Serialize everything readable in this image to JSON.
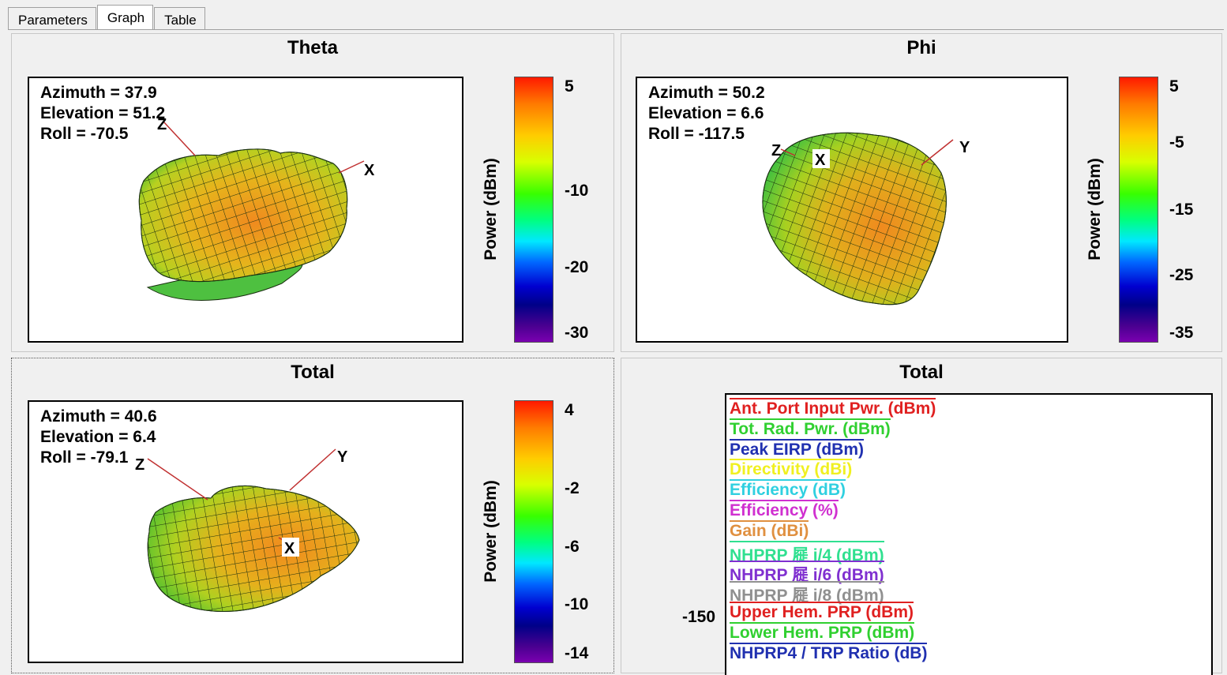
{
  "tabs": [
    {
      "label": "Parameters"
    },
    {
      "label": "Graph"
    },
    {
      "label": "Table"
    }
  ],
  "panels": {
    "theta": {
      "title": "Theta",
      "azimuth": "Azimuth = 37.9",
      "elevation": "Elevation = 51.2",
      "roll": "Roll = -70.5",
      "axes": {
        "a": "Z",
        "b": "X"
      },
      "colorbar": {
        "label": "Power (dBm)",
        "ticks": [
          "5",
          "-10",
          "-20",
          "-30"
        ]
      }
    },
    "phi": {
      "title": "Phi",
      "azimuth": "Azimuth = 50.2",
      "elevation": "Elevation = 6.6",
      "roll": "Roll = -117.5",
      "axes": {
        "a": "Z",
        "b": "X",
        "c": "Y"
      },
      "colorbar": {
        "label": "Power (dBm)",
        "ticks": [
          "5",
          "-5",
          "-15",
          "-25",
          "-35"
        ]
      }
    },
    "total3d": {
      "title": "Total",
      "azimuth": "Azimuth = 40.6",
      "elevation": "Elevation = 6.4",
      "roll": "Roll = -79.1",
      "axes": {
        "a": "Z",
        "b": "Y",
        "c": "X"
      },
      "colorbar": {
        "label": "Power (dBm)",
        "ticks": [
          "4",
          "-2",
          "-6",
          "-10",
          "-14"
        ]
      }
    },
    "total2d": {
      "title": "Total",
      "y_value": "-150",
      "legend": [
        {
          "label": "Ant. Port Input Pwr. (dBm)",
          "color": "#e02020"
        },
        {
          "label": "Tot. Rad. Pwr. (dBm)",
          "color": "#30d030"
        },
        {
          "label": "Peak EIRP (dBm)",
          "color": "#2030b0"
        },
        {
          "label": "Directivity (dBi)",
          "color": "#f0f020"
        },
        {
          "label": "Efficiency (dB)",
          "color": "#30d0e0"
        },
        {
          "label": "Efficiency (%)",
          "color": "#d030d0"
        },
        {
          "label": "Gain (dBi)",
          "color": "#e09040"
        },
        {
          "label": "NHPRP 屣 i/4 (dBm)",
          "color": "#30e090"
        },
        {
          "label": "NHPRP 屣 i/6 (dBm)",
          "color": "#8030d0"
        },
        {
          "label": "NHPRP 屣 i/8 (dBm)",
          "color": "#909090"
        },
        {
          "label": "Upper Hem. PRP (dBm)",
          "color": "#e02020"
        },
        {
          "label": "Lower Hem. PRP (dBm)",
          "color": "#30d030"
        },
        {
          "label": "NHPRP4 / TRP Ratio (dB)",
          "color": "#2030b0"
        }
      ]
    }
  }
}
